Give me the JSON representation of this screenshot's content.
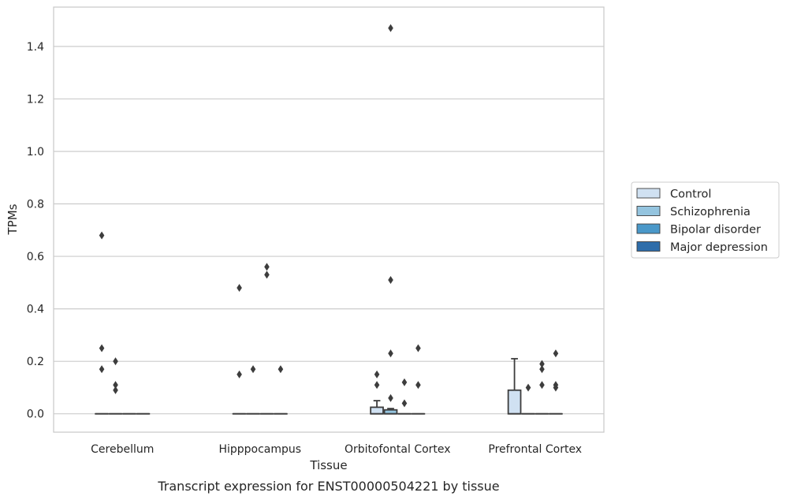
{
  "caption": "Transcript expression for ENST00000504221 by tissue",
  "chart_data": {
    "type": "box",
    "xlabel": "Tissue",
    "ylabel": "TPMs",
    "ylim": [
      -0.07,
      1.55
    ],
    "yticks": [
      0.0,
      0.2,
      0.4,
      0.6,
      0.8,
      1.0,
      1.2,
      1.4
    ],
    "ytick_labels": [
      "0.0",
      "0.2",
      "0.4",
      "0.6",
      "0.8",
      "1.0",
      "1.2",
      "1.4"
    ],
    "grid": "horizontal",
    "legend_position": "right",
    "categories": [
      "Cerebellum",
      "Hipppocampus",
      "Orbitofontal Cortex",
      "Prefrontal Cortex"
    ],
    "series": [
      {
        "name": "Control",
        "color": "#d0e1f2",
        "boxes": [
          {
            "q1": 0,
            "median": 0,
            "q3": 0,
            "whisker_low": 0,
            "whisker_high": 0,
            "outliers": [
              0.68,
              0.25,
              0.17
            ]
          },
          {
            "q1": 0,
            "median": 0,
            "q3": 0,
            "whisker_low": 0,
            "whisker_high": 0,
            "outliers": [
              0.48,
              0.15
            ]
          },
          {
            "q1": 0,
            "median": 0,
            "q3": 0.025,
            "whisker_low": 0,
            "whisker_high": 0.05,
            "outliers": [
              0.15,
              0.11
            ]
          },
          {
            "q1": 0,
            "median": 0,
            "q3": 0.09,
            "whisker_low": 0,
            "whisker_high": 0.21,
            "outliers": []
          }
        ]
      },
      {
        "name": "Schizophrenia",
        "color": "#94c4df",
        "boxes": [
          {
            "q1": 0,
            "median": 0,
            "q3": 0,
            "whisker_low": 0,
            "whisker_high": 0,
            "outliers": [
              0.2,
              0.11,
              0.09
            ]
          },
          {
            "q1": 0,
            "median": 0,
            "q3": 0,
            "whisker_low": 0,
            "whisker_high": 0,
            "outliers": [
              0.17
            ]
          },
          {
            "q1": 0,
            "median": 0,
            "q3": 0.015,
            "whisker_low": 0,
            "whisker_high": 0.02,
            "outliers": [
              1.47,
              0.51,
              0.23,
              0.06
            ]
          },
          {
            "q1": 0,
            "median": 0,
            "q3": 0,
            "whisker_low": 0,
            "whisker_high": 0,
            "outliers": [
              0.1
            ]
          }
        ]
      },
      {
        "name": "Bipolar disorder",
        "color": "#4a98c9",
        "boxes": [
          {
            "q1": 0,
            "median": 0,
            "q3": 0,
            "whisker_low": 0,
            "whisker_high": 0,
            "outliers": []
          },
          {
            "q1": 0,
            "median": 0,
            "q3": 0,
            "whisker_low": 0,
            "whisker_high": 0,
            "outliers": [
              0.56,
              0.53
            ]
          },
          {
            "q1": 0,
            "median": 0,
            "q3": 0,
            "whisker_low": 0,
            "whisker_high": 0,
            "outliers": [
              0.12,
              0.04
            ]
          },
          {
            "q1": 0,
            "median": 0,
            "q3": 0,
            "whisker_low": 0,
            "whisker_high": 0,
            "outliers": [
              0.19,
              0.17,
              0.11
            ]
          }
        ]
      },
      {
        "name": "Major depression",
        "color": "#2e6daa",
        "boxes": [
          {
            "q1": 0,
            "median": 0,
            "q3": 0,
            "whisker_low": 0,
            "whisker_high": 0,
            "outliers": []
          },
          {
            "q1": 0,
            "median": 0,
            "q3": 0,
            "whisker_low": 0,
            "whisker_high": 0,
            "outliers": [
              0.17
            ]
          },
          {
            "q1": 0,
            "median": 0,
            "q3": 0,
            "whisker_low": 0,
            "whisker_high": 0,
            "outliers": [
              0.25,
              0.11
            ]
          },
          {
            "q1": 0,
            "median": 0,
            "q3": 0,
            "whisker_low": 0,
            "whisker_high": 0,
            "outliers": [
              0.23,
              0.11,
              0.1
            ]
          }
        ]
      }
    ]
  }
}
